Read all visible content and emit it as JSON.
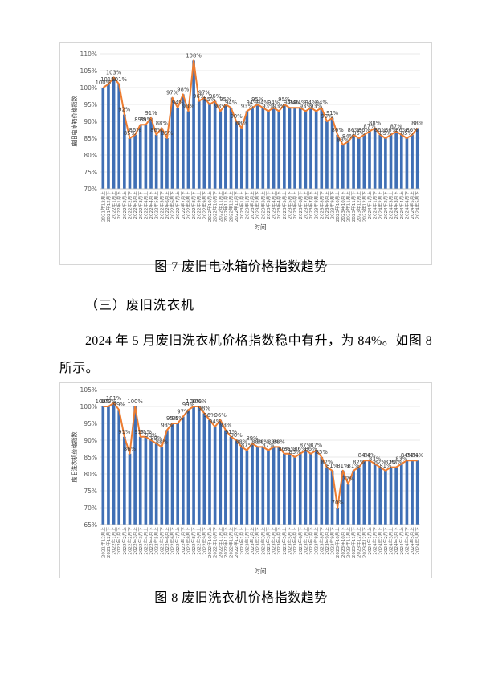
{
  "figure7": {
    "caption": "图 7 废旧电冰箱价格指数趋势",
    "chart_data": {
      "type": "bar",
      "title": "",
      "xlabel": "时间",
      "ylabel": "废旧电冰箱价格指数",
      "ylim": [
        70,
        110
      ],
      "yticks": [
        "70%",
        "75%",
        "80%",
        "85%",
        "90%",
        "95%",
        "100%",
        "105%",
        "110%"
      ],
      "categories": [
        "2021年12月上",
        "2021年12月下",
        "2022年1月上",
        "2022年1月下",
        "2022年2月上",
        "2022年2月下",
        "2022年3月上",
        "2022年3月下",
        "2022年4月上",
        "2022年4月下",
        "2022年5月上",
        "2022年5月下",
        "2022年6月上",
        "2022年6月下",
        "2022年7月上",
        "2022年7月下",
        "2022年8月上",
        "2022年8月下",
        "2022年9月上",
        "2022年9月下",
        "2022年10月上",
        "2022年10月下",
        "2022年11月上",
        "2022年11月下",
        "2022年12月上",
        "2022年12月下",
        "2023年1月上",
        "2023年1月下",
        "2023年2月上",
        "2023年2月下",
        "2023年3月上",
        "2023年3月下",
        "2023年4月上",
        "2023年4月下",
        "2023年5月上",
        "2023年5月下",
        "2023年6月上",
        "2023年6月下",
        "2023年7月上",
        "2023年7月下",
        "2023年8月上",
        "2023年8月下",
        "2023年9月上",
        "2023年9月下",
        "2023年10月上",
        "2023年10月下",
        "2023年11月上",
        "2023年11月下",
        "2023年12月上",
        "2023年12月下",
        "2024年1月上",
        "2024年1月下",
        "2024年2月上",
        "2024年2月下",
        "2024年3月上",
        "2024年3月下",
        "2024年4月上",
        "2024年4月下",
        "2024年5月上",
        "2024年5月下"
      ],
      "values": [
        100,
        101,
        103,
        101,
        92,
        85,
        86,
        89,
        89,
        91,
        86,
        88,
        85,
        97,
        94,
        98,
        93,
        108,
        96,
        97,
        95,
        96,
        93,
        95,
        94,
        90,
        88,
        93,
        94,
        95,
        94,
        93,
        94,
        93,
        95,
        94,
        94,
        94,
        93,
        94,
        93,
        94,
        90,
        91,
        86,
        83,
        84,
        86,
        85,
        86,
        87,
        88,
        86,
        85,
        86,
        87,
        86,
        85,
        86,
        88
      ],
      "labels": [
        "100%",
        "101%",
        "103%",
        "101%",
        "92%",
        "85%",
        "86%",
        "89%",
        "89%",
        "91%",
        "86%",
        "88%",
        "85%",
        "97%",
        "94%",
        "98%",
        "93%",
        "108%",
        "96%",
        "97%",
        "95%",
        "96%",
        "93%",
        "95%",
        "94%",
        "90%",
        "88%",
        "93%",
        "94%",
        "95%",
        "94%",
        "93%",
        "94%",
        "93%",
        "95%",
        "94%",
        "94%",
        "94%",
        "93%",
        "94%",
        "93%",
        "94%",
        "90%",
        "91%",
        "86%",
        "83%",
        "84%",
        "86%",
        "85%",
        "86%",
        "87%",
        "88%",
        "86%",
        "85%",
        "86%",
        "87%",
        "86%",
        "85%",
        "86%",
        "88%"
      ],
      "bar_color": "#3f6fb5",
      "line_color": "#ed7d31",
      "grid": true
    }
  },
  "section": {
    "heading": "（三）废旧洗衣机",
    "paragraph": "2024 年 5 月废旧洗衣机价格指数稳中有升，为 84%。如图 8 所示。"
  },
  "figure8": {
    "caption": "图 8 废旧洗衣机价格指数趋势",
    "chart_data": {
      "type": "bar",
      "title": "",
      "xlabel": "时间",
      "ylabel": "废旧洗衣机价格指数",
      "ylim": [
        65,
        105
      ],
      "yticks": [
        "65%",
        "70%",
        "75%",
        "80%",
        "85%",
        "90%",
        "95%",
        "100%",
        "105%"
      ],
      "categories": [
        "2021年12月上",
        "2021年12月下",
        "2022年1月上",
        "2022年1月下",
        "2022年2月上",
        "2022年2月下",
        "2022年3月上",
        "2022年3月下",
        "2022年4月上",
        "2022年4月下",
        "2022年5月上",
        "2022年5月下",
        "2022年6月上",
        "2022年6月下",
        "2022年7月上",
        "2022年7月下",
        "2022年8月上",
        "2022年8月下",
        "2022年9月上",
        "2022年9月下",
        "2022年10月上",
        "2022年10月下",
        "2022年11月上",
        "2022年11月下",
        "2022年12月上",
        "2022年12月下",
        "2023年1月上",
        "2023年1月下",
        "2023年2月上",
        "2023年2月下",
        "2023年3月上",
        "2023年3月下",
        "2023年4月上",
        "2023年4月下",
        "2023年5月上",
        "2023年5月下",
        "2023年6月上",
        "2023年6月下",
        "2023年7月上",
        "2023年7月下",
        "2023年8月上",
        "2023年8月下",
        "2023年9月上",
        "2023年9月下",
        "2023年10月上",
        "2023年10月下",
        "2023年11月上",
        "2023年11月下",
        "2023年12月上",
        "2023年12月下",
        "2024年1月上",
        "2024年1月下",
        "2024年2月上",
        "2024年2月下",
        "2024年3月上",
        "2024年3月下",
        "2024年4月上",
        "2024年4月下",
        "2024年5月上",
        "2024年5月下"
      ],
      "values": [
        100,
        100,
        101,
        99,
        91,
        86,
        100,
        91,
        91,
        90,
        89,
        88,
        93,
        95,
        95,
        97,
        99,
        100,
        100,
        98,
        96,
        94,
        96,
        93,
        91,
        90,
        88,
        87,
        89,
        88,
        88,
        87,
        88,
        88,
        86,
        86,
        85,
        86,
        87,
        86,
        87,
        85,
        82,
        81,
        70,
        81,
        77,
        81,
        82,
        84,
        84,
        83,
        82,
        81,
        82,
        82,
        83,
        84,
        84,
        84
      ],
      "labels": [
        "100%",
        "100%",
        "101%",
        "99%",
        "91%",
        "86%",
        "100%",
        "91%",
        "91%",
        "90%",
        "89%",
        "88%",
        "93%",
        "95%",
        "95%",
        "97%",
        "99%",
        "100%",
        "100%",
        "98%",
        "96%",
        "94%",
        "96%",
        "93%",
        "91%",
        "90%",
        "88%",
        "87%",
        "89%",
        "88%",
        "88%",
        "87%",
        "88%",
        "88%",
        "86%",
        "86%",
        "85%",
        "86%",
        "87%",
        "86%",
        "87%",
        "85%",
        "82%",
        "81%",
        "70%",
        "81%",
        "77%",
        "81%",
        "82%",
        "84%",
        "84%",
        "83%",
        "82%",
        "81%",
        "82%",
        "82%",
        "83%",
        "84%",
        "84%",
        "84%"
      ],
      "bar_color": "#3f6fb5",
      "line_color": "#ed7d31",
      "grid": true
    }
  }
}
